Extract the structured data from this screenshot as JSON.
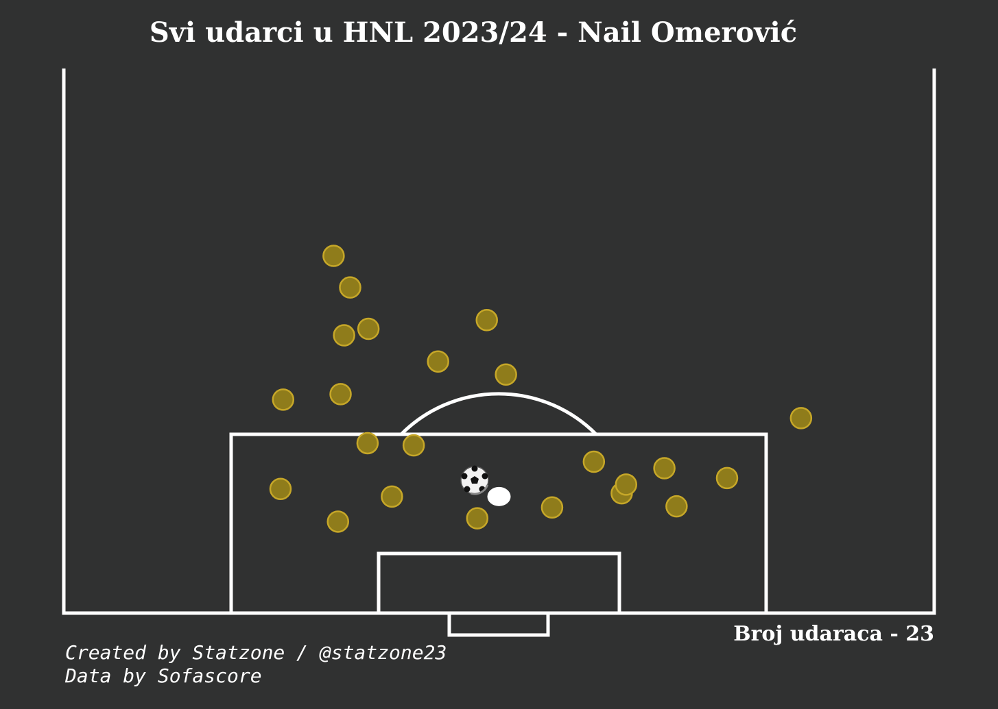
{
  "chart_data": {
    "type": "scatter",
    "title": "Svi udarci u HNL 2023/24 - Nail Omerović",
    "count_label": "Broj udaraca - 23",
    "credits": [
      "Created by Statzone / @statzone23",
      "Data by Sofascore"
    ],
    "xlim": [
      0,
      100
    ],
    "ylim": [
      50,
      100
    ],
    "marker_color": "#8f7c1b",
    "marker_edge_color": "#c6a728",
    "goal_marker_color": "#ffffff",
    "line_color": "#ffffff",
    "background_color": "#303131",
    "shots": [
      {
        "x": 24.9,
        "y": 88.6
      },
      {
        "x": 31.5,
        "y": 91.6
      },
      {
        "x": 37.7,
        "y": 89.3
      },
      {
        "x": 47.5,
        "y": 91.3
      },
      {
        "x": 56.1,
        "y": 90.3
      },
      {
        "x": 64.1,
        "y": 89.0
      },
      {
        "x": 70.4,
        "y": 90.2
      },
      {
        "x": 64.6,
        "y": 88.2
      },
      {
        "x": 60.9,
        "y": 86.1
      },
      {
        "x": 69.0,
        "y": 86.7
      },
      {
        "x": 76.2,
        "y": 87.6
      },
      {
        "x": 84.7,
        "y": 82.1
      },
      {
        "x": 50.8,
        "y": 78.1
      },
      {
        "x": 48.6,
        "y": 73.1
      },
      {
        "x": 35.0,
        "y": 73.9
      },
      {
        "x": 31.8,
        "y": 79.9
      },
      {
        "x": 25.2,
        "y": 80.4
      },
      {
        "x": 34.9,
        "y": 84.4
      },
      {
        "x": 40.2,
        "y": 84.6
      },
      {
        "x": 43.0,
        "y": 76.9
      },
      {
        "x": 32.9,
        "y": 70.1
      },
      {
        "x": 32.2,
        "y": 74.5
      },
      {
        "x": 31.0,
        "y": 67.2
      }
    ],
    "goals": [
      {
        "x": 50.0,
        "y": 89.3
      }
    ],
    "ball_marker": {
      "x": 47.2,
      "y": 87.8
    }
  }
}
